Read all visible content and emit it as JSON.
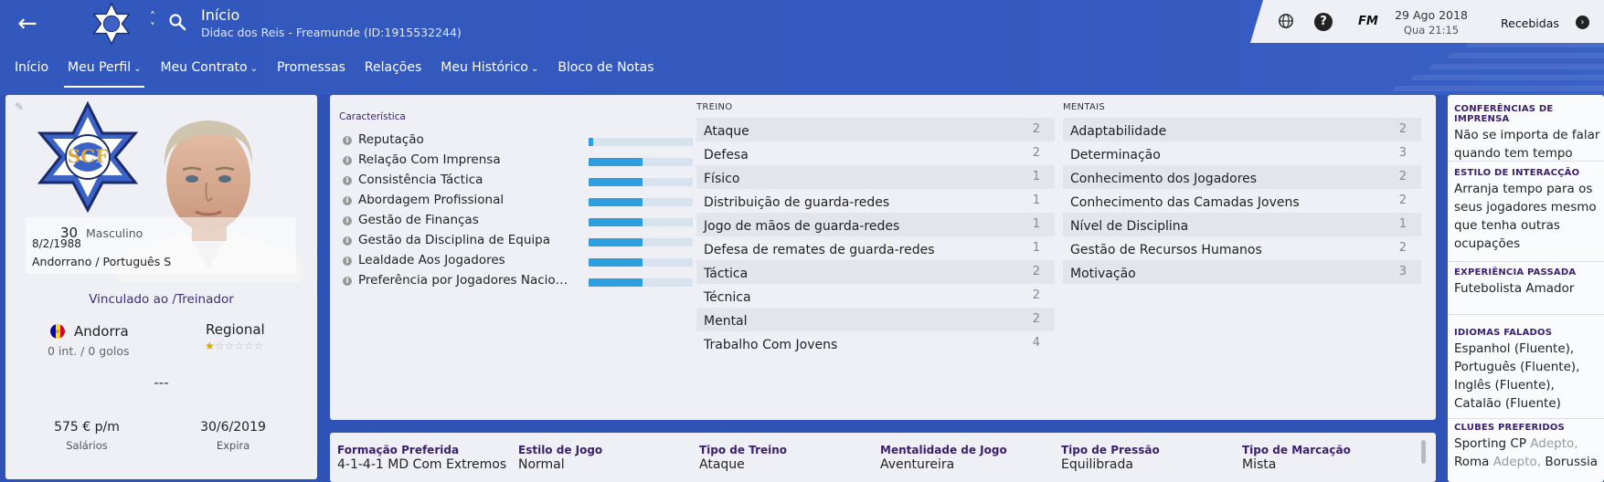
{
  "header": {
    "title": "Início",
    "subtitle": "Didac dos Reis - Freamunde (ID:1915532244)"
  },
  "tabs": [
    {
      "label": "Início",
      "dropdown": false
    },
    {
      "label": "Meu Perfil",
      "dropdown": true,
      "active": true
    },
    {
      "label": "Meu Contrato",
      "dropdown": true
    },
    {
      "label": "Promessas",
      "dropdown": false
    },
    {
      "label": "Relações",
      "dropdown": false
    },
    {
      "label": "Meu Histórico",
      "dropdown": true
    },
    {
      "label": "Bloco de Notas",
      "dropdown": false
    }
  ],
  "topright": {
    "fm_label": "FM",
    "date": "29 Ago 2018",
    "time": "Qua 21:15",
    "inbox_label": "Recebidas"
  },
  "profile": {
    "age": "30",
    "gender": "Masculino",
    "dob": "8/2/1988",
    "nationality": "Andorrano / Português S",
    "role_prefix": "Vinculado ao /",
    "role": "Treinador",
    "nation": "Andorra",
    "caps": "0 int. / 0 golos",
    "reputation_level": "Regional",
    "reputation_stars": 0.5,
    "placeholder": "---",
    "wage": "575 € p/m",
    "wage_label": "Salários",
    "expiry": "30/6/2019",
    "expiry_label": "Expira"
  },
  "characteristics": {
    "title": "Característica",
    "items": [
      {
        "label": "Reputação",
        "level": 0.04
      },
      {
        "label": "Relação Com Imprensa",
        "level": 0.52
      },
      {
        "label": "Consistência Táctica",
        "level": 0.52
      },
      {
        "label": "Abordagem Profissional",
        "level": 0.52
      },
      {
        "label": "Gestão de Finanças",
        "level": 0.52
      },
      {
        "label": "Gestão da Disciplina de Equipa",
        "level": 0.52
      },
      {
        "label": "Lealdade Aos Jogadores",
        "level": 0.52
      },
      {
        "label": "Preferência por Jogadores Nacionais",
        "level": 0.52
      }
    ]
  },
  "training": {
    "heading": "TREINO",
    "items": [
      {
        "name": "Ataque",
        "value": "2"
      },
      {
        "name": "Defesa",
        "value": "2"
      },
      {
        "name": "Físico",
        "value": "1"
      },
      {
        "name": "Distribuição de guarda-redes",
        "value": "1"
      },
      {
        "name": "Jogo de mãos de guarda-redes",
        "value": "1"
      },
      {
        "name": "Defesa de remates de guarda-redes",
        "value": "1"
      },
      {
        "name": "Táctica",
        "value": "2"
      },
      {
        "name": "Técnica",
        "value": "2"
      },
      {
        "name": "Mental",
        "value": "2"
      },
      {
        "name": "Trabalho Com Jovens",
        "value": "4"
      }
    ]
  },
  "mental": {
    "heading": "MENTAIS",
    "items": [
      {
        "name": "Adaptabilidade",
        "value": "2"
      },
      {
        "name": "Determinação",
        "value": "3"
      },
      {
        "name": "Conhecimento dos Jogadores",
        "value": "2"
      },
      {
        "name": "Conhecimento das Camadas Jovens",
        "value": "2"
      },
      {
        "name": "Nível de Disciplina",
        "value": "1"
      },
      {
        "name": "Gestão de Recursos Humanos",
        "value": "2"
      },
      {
        "name": "Motivação",
        "value": "3"
      }
    ]
  },
  "tactics": [
    {
      "label": "Formação Preferida",
      "value": "4-1-4-1 MD Com Extremos"
    },
    {
      "label": "Estilo de Jogo",
      "value": "Normal"
    },
    {
      "label": "Tipo de Treino",
      "value": "Ataque"
    },
    {
      "label": "Mentalidade de Jogo",
      "value": "Aventureira"
    },
    {
      "label": "Tipo de Pressão",
      "value": "Equilibrada"
    },
    {
      "label": "Tipo de Marcação",
      "value": "Mista"
    }
  ],
  "sidebar": {
    "press": {
      "heading": "CONFERÊNCIAS DE IMPRENSA",
      "text": "Não se importa de falar quando tem tempo"
    },
    "interaction": {
      "heading": "ESTILO DE INTERACÇÃO",
      "text": "Arranja tempo para os seus jogadores mesmo que tenha outras ocupações"
    },
    "experience": {
      "heading": "EXPERIÊNCIA PASSADA",
      "text": "Futebolista Amador"
    },
    "languages": {
      "heading": "IDIOMAS FALADOS",
      "items": [
        "Espanhol (Fluente),",
        "Português (Fluente),",
        "Inglês (Fluente),",
        "Catalão (Fluente)"
      ]
    },
    "clubs": {
      "heading": "CLUBES PREFERIDOS",
      "items": [
        {
          "name": "Sporting CP",
          "tag": "Adepto,"
        },
        {
          "name": "Roma",
          "tag": "Adepto,",
          "extra": "Borussia"
        }
      ]
    }
  },
  "colors": {
    "header_blue": "#3258bd",
    "bar_fill": "#2d9fdf",
    "heading_purple": "#3b1f6e"
  }
}
